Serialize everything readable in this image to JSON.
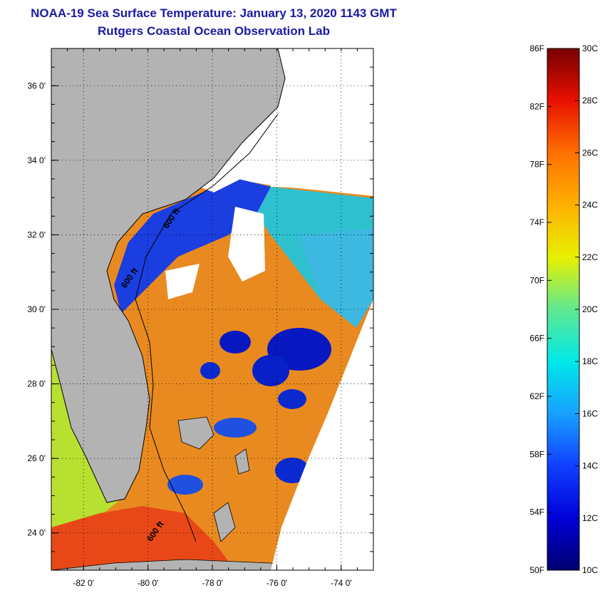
{
  "header": {
    "title": "NOAA-19 Sea Surface Temperature:  January 13, 2020 1143 GMT",
    "subtitle": "Rutgers Coastal Ocean Observation Lab"
  },
  "map": {
    "lon_range": [
      -83,
      -73
    ],
    "lat_range": [
      23,
      37
    ],
    "lon_ticks": [
      {
        "value": -82,
        "label": "-82 0'"
      },
      {
        "value": -80,
        "label": "-80 0'"
      },
      {
        "value": -78,
        "label": "-78 0'"
      },
      {
        "value": -76,
        "label": "-76 0'"
      },
      {
        "value": -74,
        "label": "-74 0'"
      }
    ],
    "lat_ticks": [
      {
        "value": 24,
        "label": "24 0'"
      },
      {
        "value": 26,
        "label": "26 0'"
      },
      {
        "value": 28,
        "label": "28 0'"
      },
      {
        "value": 30,
        "label": "30 0'"
      },
      {
        "value": 32,
        "label": "32 0'"
      },
      {
        "value": 34,
        "label": "34 0'"
      },
      {
        "value": 36,
        "label": "36 0'"
      }
    ],
    "contour_labels": [
      {
        "label": "600 ft",
        "lon": -79.2,
        "lat": 32.4
      },
      {
        "label": "600 ft",
        "lon": -80.5,
        "lat": 30.8
      },
      {
        "label": "600 ft",
        "lon": -79.7,
        "lat": 24.0
      }
    ],
    "colors": {
      "land": "#b3b3b3",
      "cloud": "#ffffff",
      "coast": "#000000"
    }
  },
  "colorbar": {
    "celsius_range": [
      10,
      30
    ],
    "fahrenheit_labels": [
      "86F",
      "82F",
      "78F",
      "74F",
      "70F",
      "66F",
      "62F",
      "58F",
      "54F",
      "50F"
    ],
    "celsius_labels": [
      "30C",
      "28C",
      "26C",
      "24C",
      "22C",
      "20C",
      "18C",
      "16C",
      "14C",
      "12C",
      "10C"
    ]
  }
}
